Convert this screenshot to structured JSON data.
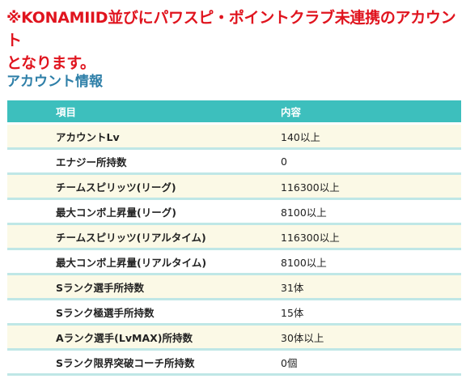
{
  "notice": {
    "line1": "※KONAMIID並びにパワスピ・ポイントクラブ未連携のアカウント",
    "line2": "となります。"
  },
  "section_title": "アカウント情報",
  "table": {
    "headers": [
      "項目",
      "内容"
    ],
    "rows": [
      {
        "item": "アカウントLv",
        "value": "140以上"
      },
      {
        "item": "エナジー所持数",
        "value": "0"
      },
      {
        "item": "チームスピリッツ(リーグ)",
        "value": "116300以上"
      },
      {
        "item": "最大コンボ上昇量(リーグ)",
        "value": "8100以上"
      },
      {
        "item": "チームスピリッツ(リアルタイム)",
        "value": "116300以上"
      },
      {
        "item": "最大コンボ上昇量(リアルタイム)",
        "value": "8100以上"
      },
      {
        "item": "Sランク選手所持数",
        "value": "31体"
      },
      {
        "item": "Sランク極選手所持数",
        "value": "15体"
      },
      {
        "item": "Aランク選手(LvMAX)所持数",
        "value": "30体以上"
      },
      {
        "item": "Sランク限界突破コーチ所持数",
        "value": "0個"
      }
    ]
  },
  "colors": {
    "notice": "#e0141e",
    "section_title": "#2e7fa8",
    "header_bg": "#3dbfbd",
    "row_odd_bg": "#fbf9e6",
    "row_border": "#bfe7e6"
  }
}
